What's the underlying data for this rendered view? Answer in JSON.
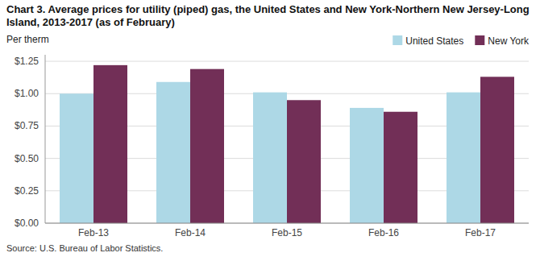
{
  "chart_data": {
    "type": "bar",
    "title": "Chart 3. Average prices for utility (piped) gas, the United States and New York-Northern New Jersey-Long Island, 2013-2017 (as of February)",
    "y_label": "Per therm",
    "source": "Source: U.S. Bureau of Labor Statistics.",
    "categories": [
      "Feb-13",
      "Feb-14",
      "Feb-15",
      "Feb-16",
      "Feb-17"
    ],
    "series": [
      {
        "name": "United States",
        "color": "#ADD8E6",
        "values": [
          1.0,
          1.09,
          1.01,
          0.89,
          1.01
        ]
      },
      {
        "name": "New York",
        "color": "#722F57",
        "values": [
          1.22,
          1.19,
          0.95,
          0.86,
          1.13
        ]
      }
    ],
    "ylim": [
      0,
      1.3
    ],
    "yticks": [
      {
        "value": 0.0,
        "label": "$0.00"
      },
      {
        "value": 0.25,
        "label": "$0.25"
      },
      {
        "value": 0.5,
        "label": "$0.50"
      },
      {
        "value": 0.75,
        "label": "$0.75"
      },
      {
        "value": 1.0,
        "label": "$1.00"
      },
      {
        "value": 1.25,
        "label": "$1.25"
      }
    ],
    "grid": true,
    "legend": "upper right"
  }
}
